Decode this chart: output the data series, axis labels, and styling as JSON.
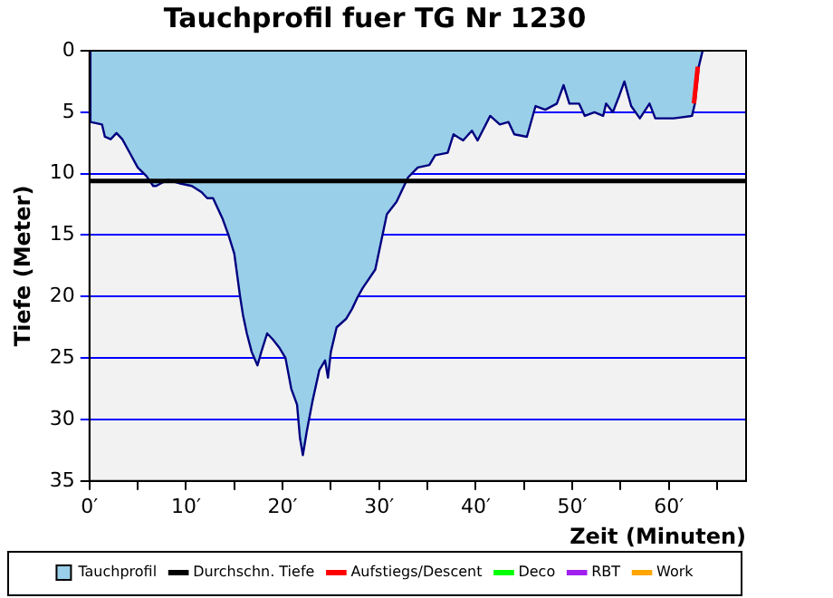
{
  "chart_data": {
    "type": "area",
    "title": "Tauchprofil fuer TG Nr 1230",
    "xlabel": "Zeit (Minuten)",
    "ylabel": "Tiefe (Meter)",
    "xlim": [
      0,
      68
    ],
    "xticks": [
      {
        "value": 0,
        "label": "0′"
      },
      {
        "value": 5,
        "label": null
      },
      {
        "value": 10,
        "label": "10′"
      },
      {
        "value": 15,
        "label": null
      },
      {
        "value": 20,
        "label": "20′"
      },
      {
        "value": 25,
        "label": null
      },
      {
        "value": 30,
        "label": "30′"
      },
      {
        "value": 35,
        "label": null
      },
      {
        "value": 40,
        "label": "40′"
      },
      {
        "value": 45,
        "label": null
      },
      {
        "value": 50,
        "label": "50′"
      },
      {
        "value": 55,
        "label": null
      },
      {
        "value": 60,
        "label": "60′"
      },
      {
        "value": 65,
        "label": null
      }
    ],
    "ylim": [
      35,
      0
    ],
    "yticks": [
      0,
      5,
      10,
      15,
      20,
      25,
      30,
      35
    ],
    "grid": "y",
    "legend": "bottom",
    "series": [
      {
        "name": "Tauchprofil",
        "color": "#99cfe8",
        "x": [
          0,
          0.1,
          1.3,
          1.6,
          2.2,
          2.8,
          3.4,
          4.1,
          5,
          5.9,
          6.6,
          6.9,
          8.1,
          9.4,
          10.6,
          11.6,
          12.2,
          12.8,
          13.8,
          14.4,
          15,
          15.6,
          15.9,
          16.3,
          16.8,
          17.4,
          17.8,
          18.4,
          19,
          19.7,
          20.3,
          20.9,
          21.5,
          21.8,
          22.1,
          22.5,
          23.1,
          23.8,
          24.4,
          24.7,
          25,
          25.6,
          26.6,
          27.2,
          27.8,
          28.3,
          29.6,
          30.8,
          31.8,
          33,
          34,
          35.2,
          35.8,
          37.1,
          37.7,
          38.7,
          39.6,
          40.2,
          41.5,
          42.5,
          43.4,
          44,
          45.3,
          46.2,
          47.2,
          48.4,
          49.1,
          49.7,
          50.7,
          51.3,
          52.3,
          53.2,
          53.5,
          54.2,
          54.8,
          55.4,
          56.1,
          57,
          58,
          58.6,
          60.5,
          62.4,
          62.7,
          63.1,
          63.5
        ],
        "values": [
          0,
          5.8,
          6,
          7,
          7.2,
          6.7,
          7.2,
          8.2,
          9.5,
          10.2,
          11,
          11,
          10.5,
          10.8,
          11,
          11.5,
          12,
          12,
          13.7,
          15,
          16.5,
          20,
          21.5,
          23,
          24.5,
          25.6,
          24.5,
          23,
          23.5,
          24.2,
          25,
          27.5,
          28.8,
          31.5,
          32.9,
          31,
          28.5,
          26,
          25.2,
          26.6,
          24.5,
          22.5,
          21.8,
          21,
          20,
          19.3,
          17.8,
          13.3,
          12.3,
          10.3,
          9.5,
          9.3,
          8.5,
          8.3,
          6.8,
          7.3,
          6.5,
          7.3,
          5.3,
          6,
          5.8,
          6.8,
          7,
          4.5,
          4.8,
          4.3,
          2.8,
          4.3,
          4.3,
          5.3,
          5,
          5.3,
          4.3,
          5,
          3.8,
          2.5,
          4.5,
          5.5,
          4.3,
          5.5,
          5.5,
          5.3,
          4.3,
          1.3,
          0
        ]
      },
      {
        "name": "Durchschn. Tiefe",
        "type": "line",
        "color": "#000000",
        "x": [
          0,
          68
        ],
        "values": [
          10.6,
          10.6
        ]
      },
      {
        "name": "Aufstiegs/Descent",
        "type": "line",
        "color": "#ff0000",
        "x": [
          62.6,
          63.0
        ],
        "values": [
          4.3,
          1.3
        ]
      },
      {
        "name": "Deco",
        "type": "line",
        "color": "#00ff00"
      },
      {
        "name": "RBT",
        "type": "line",
        "color": "#a020f0"
      },
      {
        "name": "Work",
        "type": "line",
        "color": "#ffa500"
      }
    ]
  }
}
